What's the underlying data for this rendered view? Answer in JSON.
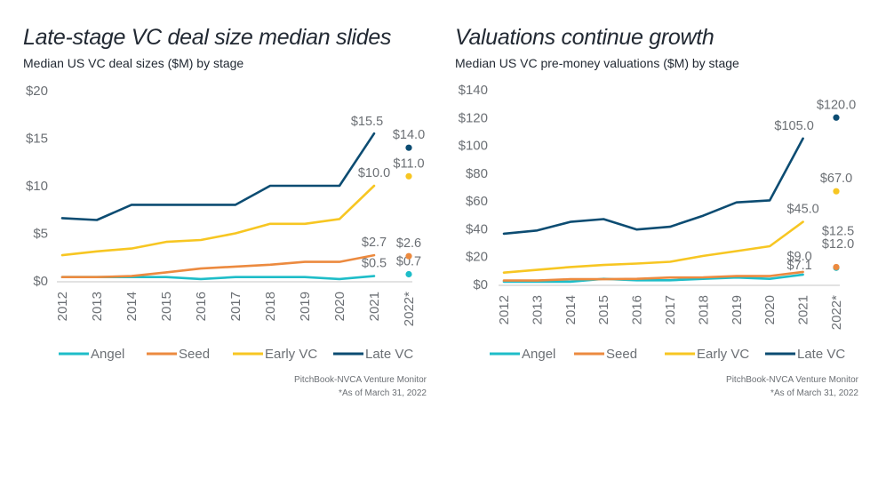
{
  "chart_data": [
    {
      "type": "line",
      "title": "Late-stage VC deal size median slides",
      "subtitle": "Median US VC deal sizes ($M) by stage",
      "xlabel": "",
      "ylabel": "",
      "categories": [
        "2012",
        "2013",
        "2014",
        "2015",
        "2016",
        "2017",
        "2018",
        "2019",
        "2020",
        "2021",
        "2022*"
      ],
      "ylim": [
        0,
        20
      ],
      "yticks": [
        "$0",
        "$5",
        "$10",
        "$15",
        "$20"
      ],
      "ytick_values": [
        0,
        5,
        10,
        15,
        20
      ],
      "grid": false,
      "legend_position": "bottom",
      "series": [
        {
          "name": "Angel",
          "color": "#1ebdc8",
          "values": [
            0.4,
            0.4,
            0.4,
            0.4,
            0.2,
            0.4,
            0.4,
            0.4,
            0.2,
            0.5
          ],
          "point_2022": 0.7,
          "label_2021": "$0.5",
          "label_2022": "$0.7"
        },
        {
          "name": "Seed",
          "color": "#ec8a3f",
          "values": [
            0.4,
            0.4,
            0.5,
            0.9,
            1.3,
            1.5,
            1.7,
            2.0,
            2.0,
            2.7
          ],
          "point_2022": 2.6,
          "label_2021": "$2.7",
          "label_2022": "$2.6"
        },
        {
          "name": "Early VC",
          "color": "#f7c622",
          "values": [
            2.7,
            3.1,
            3.4,
            4.1,
            4.3,
            5.0,
            6.0,
            6.0,
            6.5,
            10.0
          ],
          "point_2022": 11.0,
          "label_2021": "$10.0",
          "label_2022": "$11.0"
        },
        {
          "name": "Late VC",
          "color": "#0c4c72",
          "values": [
            6.6,
            6.4,
            8.0,
            8.0,
            8.0,
            8.0,
            10.0,
            10.0,
            10.0,
            15.5
          ],
          "point_2022": 14.0,
          "label_2021": "$15.5",
          "label_2022": "$14.0"
        }
      ],
      "source": "PitchBook-NVCA Venture Monitor",
      "note": "*As of March 31, 2022"
    },
    {
      "type": "line",
      "title": "Valuations continue growth",
      "subtitle": "Median US VC pre-money valuations ($M) by stage",
      "xlabel": "",
      "ylabel": "",
      "categories": [
        "2012",
        "2013",
        "2014",
        "2015",
        "2016",
        "2017",
        "2018",
        "2019",
        "2020",
        "2021",
        "2022*"
      ],
      "ylim": [
        0,
        140
      ],
      "yticks": [
        "$0",
        "$20",
        "$40",
        "$60",
        "$80",
        "$100",
        "$120",
        "$140"
      ],
      "ytick_values": [
        0,
        20,
        40,
        60,
        80,
        100,
        120,
        140
      ],
      "grid": false,
      "legend_position": "bottom",
      "series": [
        {
          "name": "Angel",
          "color": "#1ebdc8",
          "values": [
            2.0,
            2.0,
            2.0,
            4.0,
            3.0,
            3.0,
            4.0,
            5.0,
            4.0,
            7.1
          ],
          "point_2022": 12.0,
          "label_2021": "$7.1",
          "label_2022": "$12.0"
        },
        {
          "name": "Seed",
          "color": "#ec8a3f",
          "values": [
            2.8,
            2.8,
            3.8,
            3.8,
            4.0,
            5.0,
            5.1,
            6.0,
            6.0,
            9.0
          ],
          "point_2022": 12.5,
          "label_2021": "$9.0",
          "label_2022": "$12.5"
        },
        {
          "name": "Early VC",
          "color": "#f7c622",
          "values": [
            8.5,
            10.5,
            12.5,
            14.0,
            15.0,
            16.3,
            20.5,
            24.0,
            27.5,
            45.0
          ],
          "point_2022": 67.0,
          "label_2021": "$45.0",
          "label_2022": "$67.0"
        },
        {
          "name": "Late VC",
          "color": "#0c4c72",
          "values": [
            36.5,
            38.8,
            45.0,
            47.0,
            39.5,
            41.5,
            49.5,
            59.0,
            60.5,
            105.0
          ],
          "point_2022": 120.0,
          "label_2021": "$105.0",
          "label_2022": "$120.0"
        }
      ],
      "source": "PitchBook-NVCA Venture Monitor",
      "note": "*As of March 31, 2022"
    }
  ]
}
